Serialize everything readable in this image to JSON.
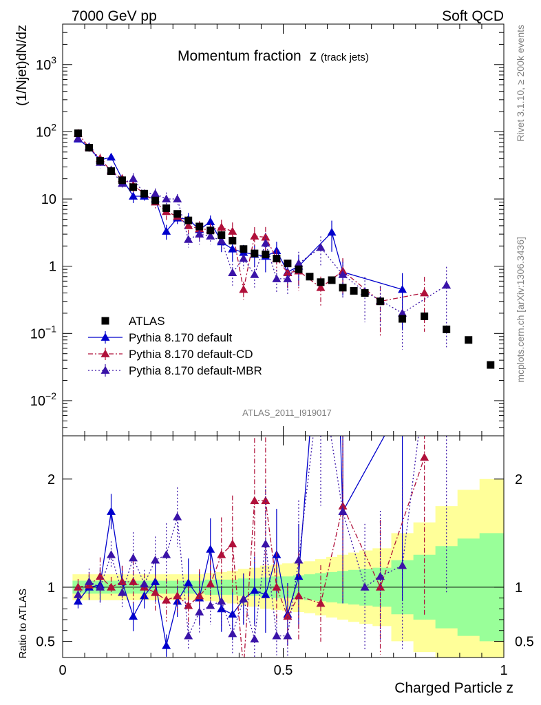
{
  "header": {
    "left": "7000 GeV pp",
    "right": "Soft QCD",
    "side_top": "Rivet 3.1.10, ≥ 200k events",
    "side_bottom": "mcplots.cern.ch [arXiv:1306.3436]",
    "analysis": "ATLAS_2011_I919017"
  },
  "chart_data": {
    "type": "scatter",
    "title": "Momentum fraction",
    "title_symbol": "z",
    "title_sub": "(track jets)",
    "xlabel": "Charged Particle z",
    "ylabel": "(1/Njet)dN/dz",
    "ratio_ylabel": "Ratio to ATLAS",
    "xlim": [
      0,
      1
    ],
    "ylim": [
      0.003,
      4000
    ],
    "yscale": "log",
    "ratio_ylim": [
      0.35,
      2.4
    ],
    "x_ticks": [
      "0",
      "0.5",
      "1"
    ],
    "y_ticks": [
      {
        "base": "10",
        "exp": "3",
        "value": 1000
      },
      {
        "base": "10",
        "exp": "2",
        "value": 100
      },
      {
        "base": "10",
        "exp": "",
        "value": 10
      },
      {
        "base": "1",
        "exp": "",
        "value": 1
      },
      {
        "base": "10",
        "exp": "−1",
        "value": 0.1
      },
      {
        "base": "10",
        "exp": "−2",
        "value": 0.01
      }
    ],
    "ratio_ticks": [
      "0.5",
      "1",
      "2"
    ],
    "legend": [
      {
        "name": "ATLAS",
        "marker": "square",
        "color": "#000000"
      },
      {
        "name": "Pythia 8.170 default",
        "marker": "triangle",
        "color": "#0000cc"
      },
      {
        "name": "Pythia 8.170 default-CD",
        "marker": "triangle",
        "color": "#b0103a"
      },
      {
        "name": "Pythia 8.170 default-MBR",
        "marker": "triangle",
        "color": "#3a13a8"
      }
    ],
    "series": [
      {
        "name": "ATLAS",
        "x": [
          0.035,
          0.06,
          0.085,
          0.11,
          0.135,
          0.16,
          0.185,
          0.21,
          0.235,
          0.26,
          0.285,
          0.31,
          0.335,
          0.36,
          0.385,
          0.41,
          0.435,
          0.46,
          0.485,
          0.51,
          0.535,
          0.56,
          0.585,
          0.61,
          0.635,
          0.66,
          0.685,
          0.72,
          0.77,
          0.82,
          0.87,
          0.92,
          0.97
        ],
        "y": [
          95,
          58,
          37,
          26,
          19,
          15,
          12,
          9.5,
          7.3,
          6.0,
          4.8,
          3.9,
          3.4,
          2.9,
          2.4,
          1.8,
          1.55,
          1.5,
          1.3,
          1.1,
          0.9,
          0.7,
          0.58,
          0.62,
          0.48,
          0.43,
          0.4,
          0.3,
          0.165,
          0.18,
          0.115,
          0.08,
          0.034
        ],
        "ratio_band_inner": [
          0.06,
          0.06,
          0.06,
          0.06,
          0.06,
          0.06,
          0.06,
          0.06,
          0.06,
          0.06,
          0.06,
          0.06,
          0.07,
          0.07,
          0.07,
          0.08,
          0.08,
          0.09,
          0.1,
          0.1,
          0.11,
          0.12,
          0.13,
          0.14,
          0.15,
          0.16,
          0.17,
          0.18,
          0.25,
          0.3,
          0.38,
          0.45,
          0.5
        ],
        "ratio_band_outer": [
          0.12,
          0.12,
          0.12,
          0.12,
          0.12,
          0.12,
          0.12,
          0.12,
          0.12,
          0.12,
          0.12,
          0.12,
          0.13,
          0.14,
          0.15,
          0.17,
          0.18,
          0.2,
          0.21,
          0.22,
          0.23,
          0.24,
          0.26,
          0.28,
          0.3,
          0.32,
          0.34,
          0.36,
          0.5,
          0.6,
          0.75,
          0.9,
          1.0
        ]
      },
      {
        "name": "Pythia 8.170 default",
        "x": [
          0.035,
          0.06,
          0.085,
          0.11,
          0.135,
          0.16,
          0.185,
          0.21,
          0.235,
          0.26,
          0.285,
          0.31,
          0.335,
          0.36,
          0.385,
          0.41,
          0.435,
          0.46,
          0.485,
          0.51,
          0.535,
          0.61,
          0.635,
          0.77
        ],
        "y": [
          78,
          58,
          38,
          42,
          20,
          11,
          11,
          10,
          3.3,
          5.2,
          5.0,
          3.5,
          4.6,
          2.3,
          1.8,
          1.6,
          1.5,
          1.4,
          1.7,
          0.82,
          1.0,
          3.2,
          0.82,
          0.45
        ],
        "ratio": [
          0.87,
          1.0,
          1.02,
          1.7,
          1.05,
          0.73,
          0.92,
          1.05,
          0.46,
          0.87,
          1.04,
          0.9,
          1.35,
          0.8,
          0.75,
          0.89,
          0.97,
          0.93,
          1.3,
          0.75,
          1.1,
          5.0,
          1.7,
          2.7
        ]
      },
      {
        "name": "Pythia 8.170 default-CD",
        "x": [
          0.035,
          0.06,
          0.085,
          0.11,
          0.135,
          0.16,
          0.185,
          0.21,
          0.235,
          0.26,
          0.285,
          0.31,
          0.335,
          0.36,
          0.385,
          0.41,
          0.435,
          0.46,
          0.485,
          0.51,
          0.535,
          0.585,
          0.635,
          0.72,
          0.82
        ],
        "y": [
          95,
          58,
          40,
          26,
          20,
          16,
          12,
          9,
          6.5,
          5.5,
          4.0,
          3.6,
          3.5,
          3.8,
          3.3,
          0.45,
          2.8,
          2.7,
          1.3,
          0.8,
          0.85,
          0.48,
          0.85,
          0.3,
          0.4
        ],
        "ratio": [
          1.0,
          1.02,
          1.1,
          1.0,
          1.05,
          1.05,
          1.0,
          0.95,
          0.88,
          0.92,
          0.83,
          0.92,
          1.03,
          1.3,
          1.4,
          0.25,
          1.8,
          1.8,
          1.0,
          0.73,
          0.92,
          0.85,
          1.75,
          1.0,
          2.2
        ]
      },
      {
        "name": "Pythia 8.170 default-MBR",
        "x": [
          0.035,
          0.06,
          0.085,
          0.11,
          0.135,
          0.16,
          0.185,
          0.21,
          0.235,
          0.26,
          0.285,
          0.31,
          0.335,
          0.36,
          0.385,
          0.41,
          0.435,
          0.46,
          0.485,
          0.51,
          0.535,
          0.585,
          0.635,
          0.685,
          0.72,
          0.77,
          0.87
        ],
        "y": [
          80,
          60,
          35,
          27,
          17,
          20,
          12,
          12,
          10,
          10,
          2.5,
          3.0,
          2.8,
          2.4,
          0.8,
          1.3,
          0.75,
          2.2,
          0.65,
          0.65,
          1.1,
          1.9,
          0.75,
          0.42,
          0.31,
          0.2,
          0.52
        ],
        "ratio": [
          0.93,
          1.05,
          1.0,
          1.3,
          0.95,
          1.27,
          1.03,
          1.25,
          1.3,
          1.65,
          0.55,
          0.77,
          0.83,
          0.87,
          0.57,
          0.89,
          0.52,
          1.4,
          0.55,
          0.55,
          1.25,
          3.0,
          1.7,
          1.0,
          1.1,
          1.2,
          4.5
        ]
      }
    ]
  }
}
